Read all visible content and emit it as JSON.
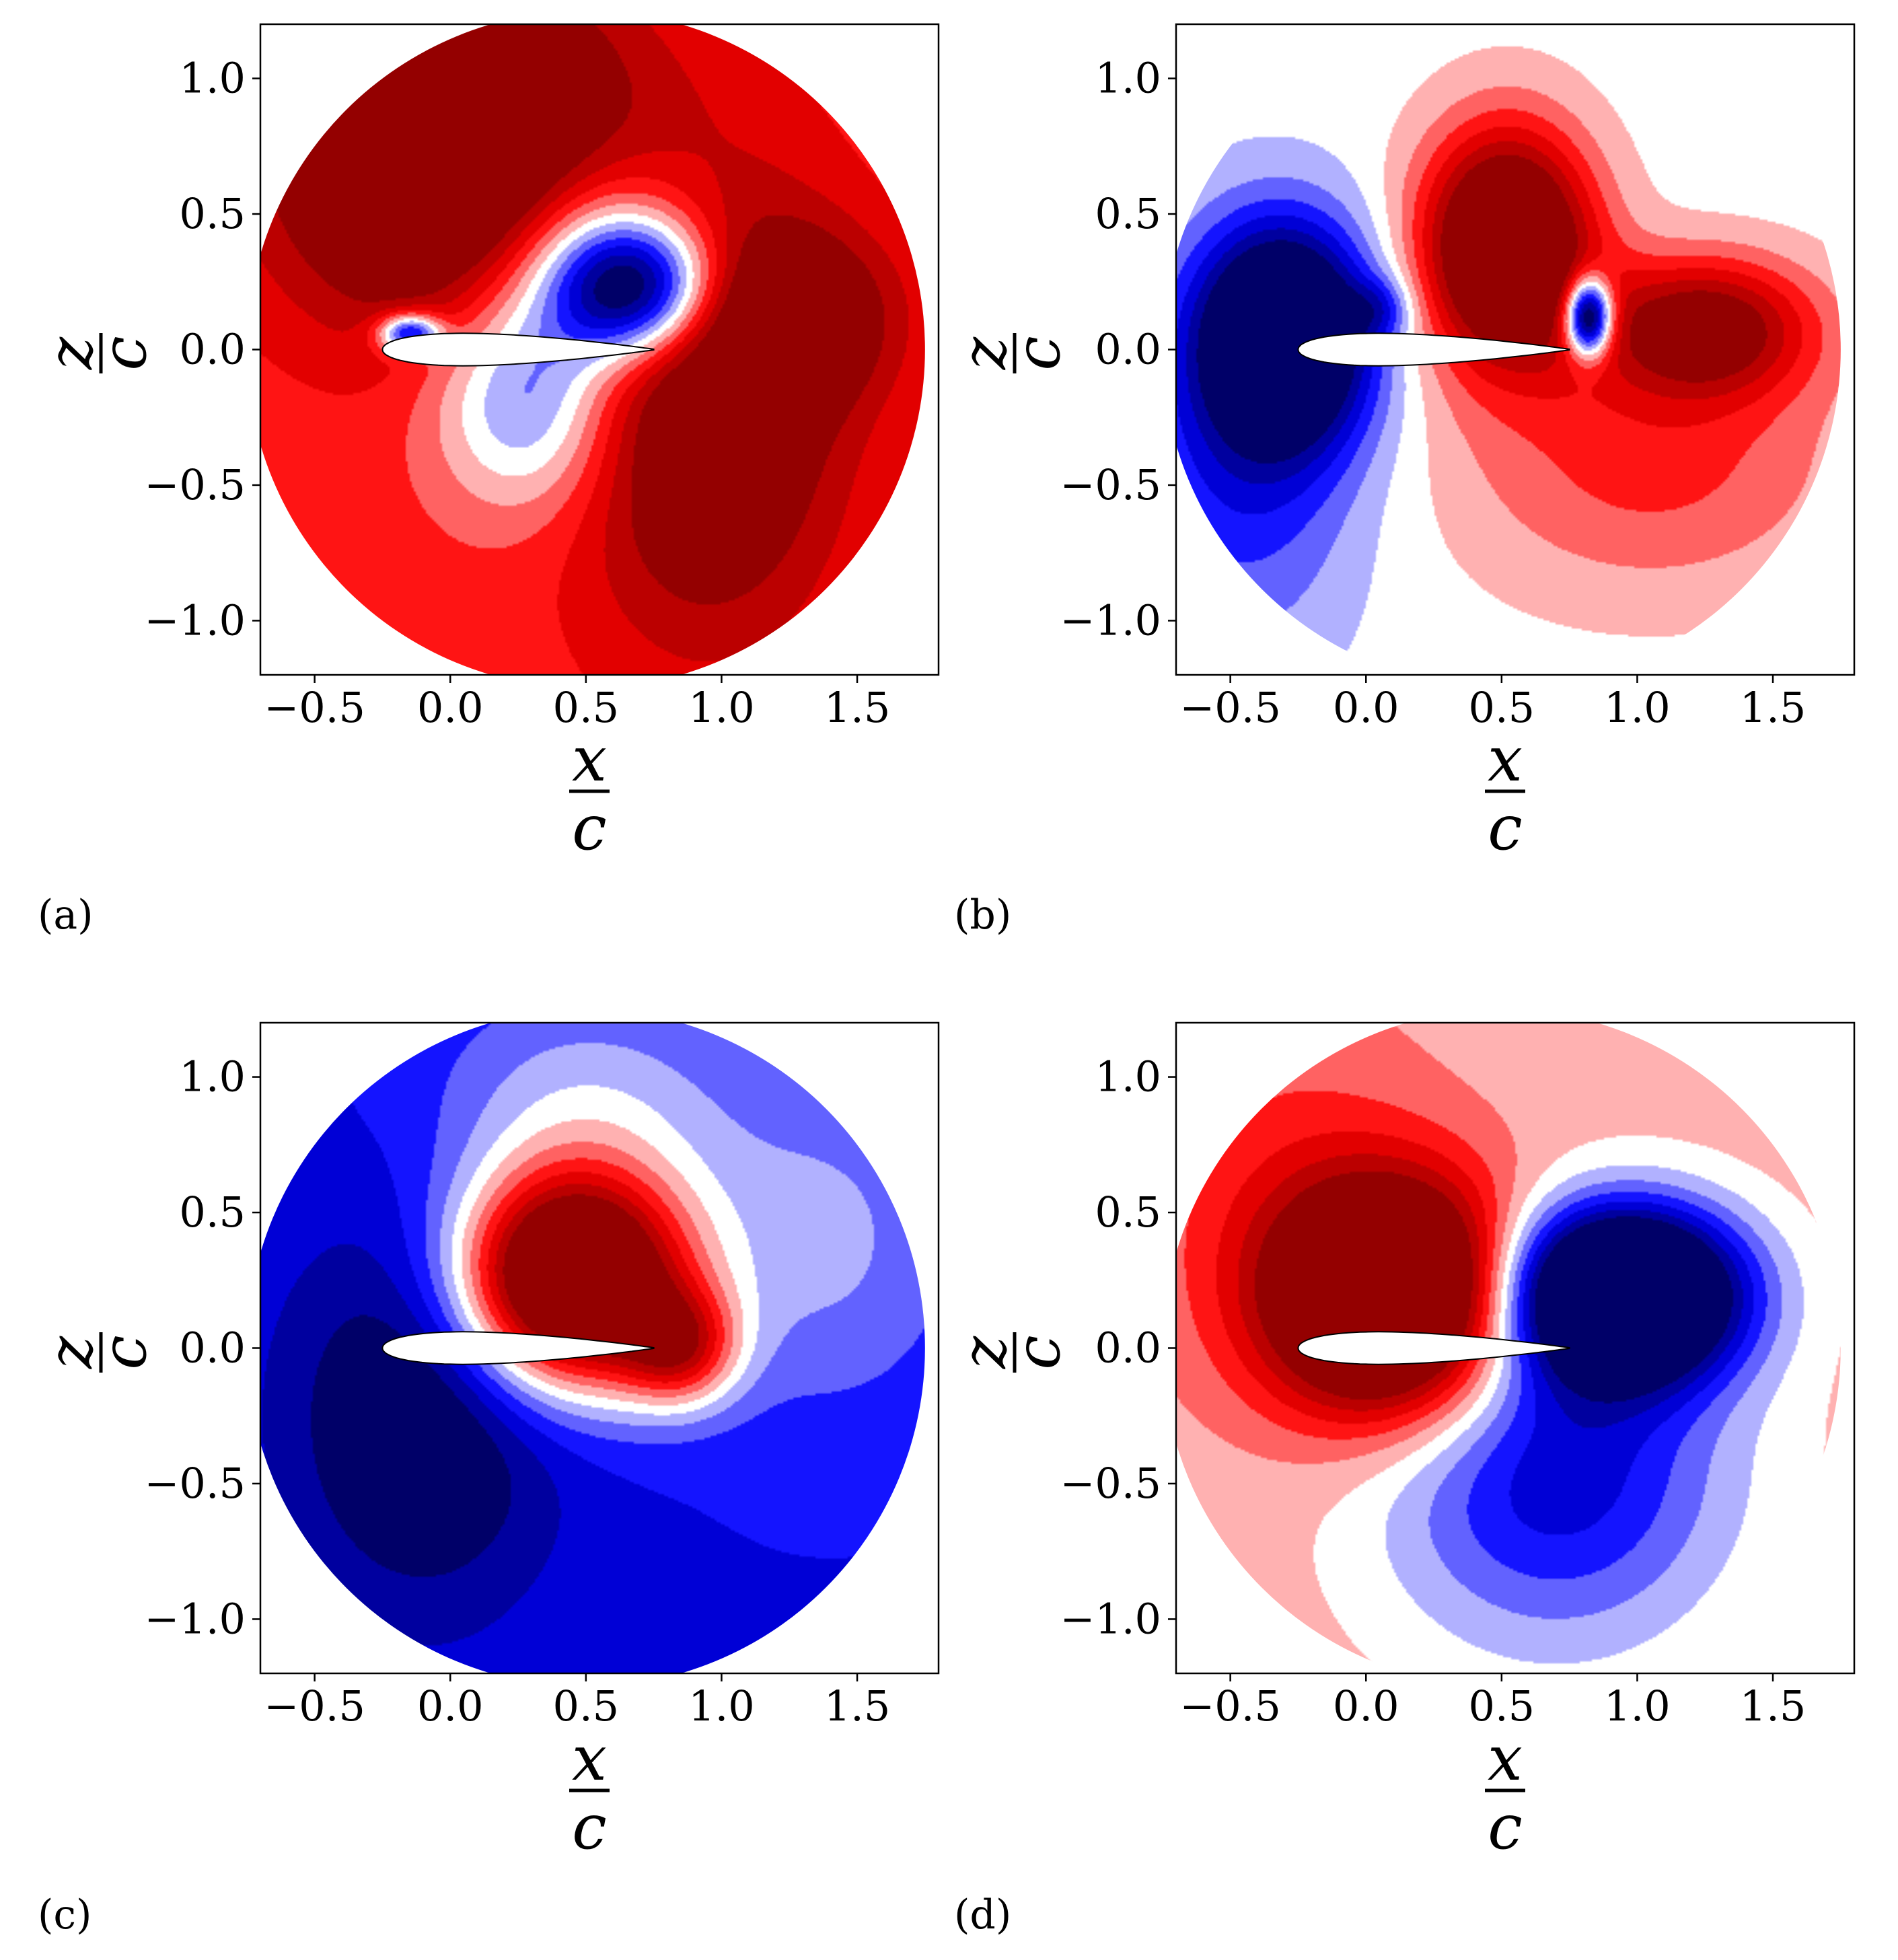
{
  "figure": {
    "colormap": "bwr",
    "colors": {
      "darkblue": "#00004c",
      "blue": "#0000ff",
      "white": "#ffffff",
      "red": "#ff0000",
      "darkred": "#800000",
      "airfoil_fill": "#ffffff",
      "airfoil_edge": "#000000"
    }
  },
  "chart_data": [
    {
      "type": "contour",
      "panel_label": "(a)",
      "xlabel": {
        "num": "x",
        "den": "c"
      },
      "ylabel": {
        "num": "z",
        "den": "c"
      },
      "xlim": [
        -0.7,
        1.8
      ],
      "ylim": [
        -1.2,
        1.2
      ],
      "xticks": [
        -0.5,
        0.0,
        0.5,
        1.0,
        1.5
      ],
      "xtick_labels": [
        "−0.5",
        "0.0",
        "0.5",
        "1.0",
        "1.5"
      ],
      "yticks": [
        -1.0,
        -0.5,
        0.0,
        0.5,
        1.0
      ],
      "ytick_labels": [
        "−1.0",
        "−0.5",
        "0.0",
        "0.5",
        "1.0"
      ],
      "domain": {
        "center": [
          0.5,
          0.0
        ],
        "radius": 1.25
      },
      "airfoil": {
        "leading_edge": [
          -0.25,
          0.0
        ],
        "trailing_edge": [
          0.75,
          0.0
        ],
        "thickness": 0.12
      },
      "background": 0.45,
      "features": [
        {
          "kind": "gauss",
          "x": 0.0,
          "z": 0.75,
          "sx": 0.45,
          "sz": 0.45,
          "a": 1.25
        },
        {
          "kind": "gauss",
          "x": 0.95,
          "z": -0.2,
          "sx": 0.35,
          "sz": 0.6,
          "a": 0.85
        },
        {
          "kind": "gauss",
          "x": 1.3,
          "z": 0.12,
          "sx": 0.25,
          "sz": 0.22,
          "a": 0.55
        },
        {
          "kind": "gauss",
          "x": 0.68,
          "z": 0.22,
          "sx": 0.22,
          "sz": 0.18,
          "a": -1.6
        },
        {
          "kind": "gauss",
          "x": 0.55,
          "z": 0.45,
          "sx": 0.3,
          "sz": 0.25,
          "a": -0.6
        },
        {
          "kind": "gauss",
          "x": 0.3,
          "z": -0.15,
          "sx": 0.25,
          "sz": 0.3,
          "a": -0.9
        },
        {
          "kind": "gauss",
          "x": -0.15,
          "z": 0.06,
          "sx": 0.08,
          "sz": 0.05,
          "a": -1.2
        }
      ]
    },
    {
      "type": "contour",
      "panel_label": "(b)",
      "xlabel": {
        "num": "x",
        "den": "c"
      },
      "ylabel": {
        "num": "z",
        "den": "c"
      },
      "xlim": [
        -0.7,
        1.8
      ],
      "ylim": [
        -1.2,
        1.2
      ],
      "xticks": [
        -0.5,
        0.0,
        0.5,
        1.0,
        1.5
      ],
      "xtick_labels": [
        "−0.5",
        "0.0",
        "0.5",
        "1.0",
        "1.5"
      ],
      "yticks": [
        -1.0,
        -0.5,
        0.0,
        0.5,
        1.0
      ],
      "ytick_labels": [
        "−1.0",
        "−0.5",
        "0.0",
        "0.5",
        "1.0"
      ],
      "domain": {
        "center": [
          0.5,
          0.0
        ],
        "radius": 1.25
      },
      "airfoil": {
        "leading_edge": [
          -0.25,
          0.0
        ],
        "trailing_edge": [
          0.75,
          0.0
        ],
        "thickness": 0.12
      },
      "background": 0.0,
      "features": [
        {
          "kind": "gauss",
          "x": -0.3,
          "z": 0.05,
          "sx": 0.22,
          "sz": 0.28,
          "a": -1.6
        },
        {
          "kind": "gauss",
          "x": -0.45,
          "z": -0.4,
          "sx": 0.3,
          "sz": 0.5,
          "a": -0.5
        },
        {
          "kind": "gauss",
          "x": 0.52,
          "z": 0.38,
          "sx": 0.22,
          "sz": 0.3,
          "a": 1.6
        },
        {
          "kind": "gauss",
          "x": 0.82,
          "z": 0.12,
          "sx": 0.06,
          "sz": 0.1,
          "a": -1.8
        },
        {
          "kind": "gauss",
          "x": 1.25,
          "z": 0.08,
          "sx": 0.28,
          "sz": 0.18,
          "a": 1.0
        },
        {
          "kind": "gauss",
          "x": 1.05,
          "z": -0.4,
          "sx": 0.5,
          "sz": 0.35,
          "a": 0.45
        },
        {
          "kind": "gauss",
          "x": 0.05,
          "z": 0.15,
          "sx": 0.08,
          "sz": 0.08,
          "a": -0.4
        }
      ]
    },
    {
      "type": "contour",
      "panel_label": "(c)",
      "xlabel": {
        "num": "x",
        "den": "c"
      },
      "ylabel": {
        "num": "z",
        "den": "c"
      },
      "xlim": [
        -0.7,
        1.8
      ],
      "ylim": [
        -1.2,
        1.2
      ],
      "xticks": [
        -0.5,
        0.0,
        0.5,
        1.0,
        1.5
      ],
      "xtick_labels": [
        "−0.5",
        "0.0",
        "0.5",
        "1.0",
        "1.5"
      ],
      "yticks": [
        -1.0,
        -0.5,
        0.0,
        0.5,
        1.0
      ],
      "ytick_labels": [
        "−1.0",
        "−0.5",
        "0.0",
        "0.5",
        "1.0"
      ],
      "domain": {
        "center": [
          0.5,
          0.0
        ],
        "radius": 1.25
      },
      "airfoil": {
        "leading_edge": [
          -0.25,
          0.0
        ],
        "trailing_edge": [
          0.75,
          0.0
        ],
        "thickness": 0.12
      },
      "background": -0.55,
      "features": [
        {
          "kind": "gauss",
          "x": 0.45,
          "z": 0.25,
          "sx": 0.3,
          "sz": 0.28,
          "a": 2.3
        },
        {
          "kind": "gauss",
          "x": 0.85,
          "z": 0.0,
          "sx": 0.15,
          "sz": 0.15,
          "a": 0.9
        },
        {
          "kind": "gauss",
          "x": -0.1,
          "z": -0.25,
          "sx": 0.35,
          "sz": 0.5,
          "a": -0.6
        },
        {
          "kind": "gauss",
          "x": 1.4,
          "z": 0.4,
          "sx": 0.35,
          "sz": 0.45,
          "a": 0.35
        },
        {
          "kind": "gauss",
          "x": 0.5,
          "z": 0.9,
          "sx": 0.4,
          "sz": 0.3,
          "a": 0.4
        }
      ]
    },
    {
      "type": "contour",
      "panel_label": "(d)",
      "xlabel": {
        "num": "x",
        "den": "c"
      },
      "ylabel": {
        "num": "z",
        "den": "c"
      },
      "xlim": [
        -0.7,
        1.8
      ],
      "ylim": [
        -1.2,
        1.2
      ],
      "xticks": [
        -0.5,
        0.0,
        0.5,
        1.0,
        1.5
      ],
      "xtick_labels": [
        "−0.5",
        "0.0",
        "0.5",
        "1.0",
        "1.5"
      ],
      "yticks": [
        -1.0,
        -0.5,
        0.0,
        0.5,
        1.0
      ],
      "ytick_labels": [
        "−1.0",
        "−0.5",
        "0.0",
        "0.5",
        "1.0"
      ],
      "domain": {
        "center": [
          0.5,
          0.0
        ],
        "radius": 1.25
      },
      "airfoil": {
        "leading_edge": [
          -0.25,
          0.0
        ],
        "trailing_edge": [
          0.75,
          0.0
        ],
        "thickness": 0.12
      },
      "background": 0.15,
      "features": [
        {
          "kind": "gauss",
          "x": 0.1,
          "z": 0.18,
          "sx": 0.32,
          "sz": 0.3,
          "a": 1.9
        },
        {
          "kind": "gauss",
          "x": 0.95,
          "z": 0.2,
          "sx": 0.3,
          "sz": 0.22,
          "a": -2.2
        },
        {
          "kind": "gauss",
          "x": 0.7,
          "z": -0.45,
          "sx": 0.45,
          "sz": 0.45,
          "a": -0.8
        },
        {
          "kind": "gauss",
          "x": -0.3,
          "z": 0.6,
          "sx": 0.4,
          "sz": 0.5,
          "a": 0.25
        }
      ]
    }
  ]
}
